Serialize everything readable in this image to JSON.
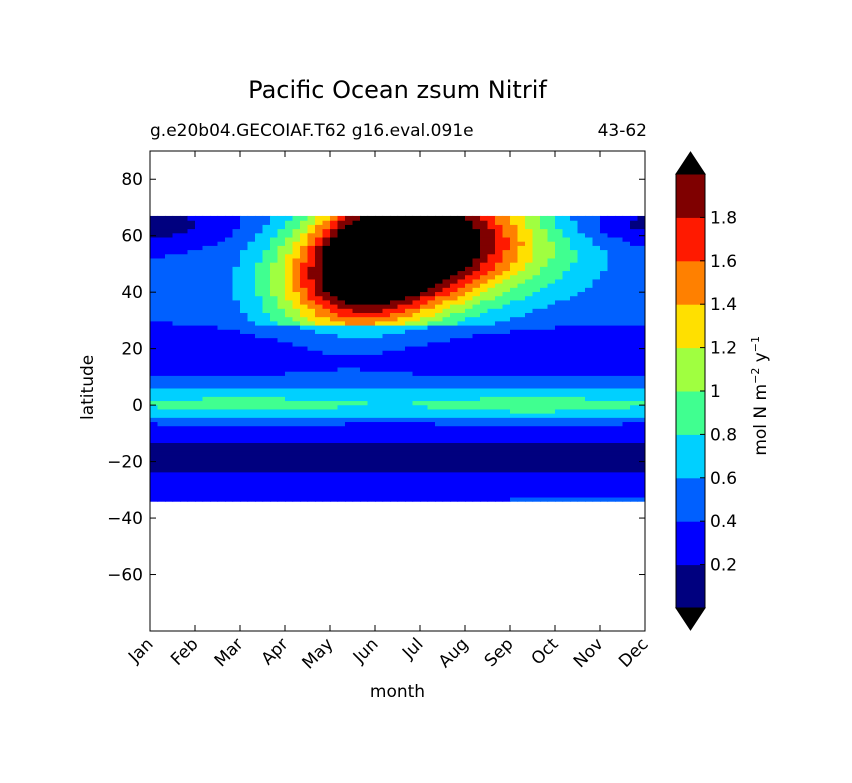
{
  "chart_data": {
    "type": "heatmap",
    "plot_type": "filled contour",
    "title": "Pacific Ocean zsum Nitrif",
    "subtitle_left": "g.e20b04.GECOIAF.T62 g16.eval.091e",
    "subtitle_right": "43-62",
    "xlabel": "month",
    "ylabel": "latitude",
    "x_categories": [
      "Jan",
      "Feb",
      "Mar",
      "Apr",
      "May",
      "Jun",
      "Jul",
      "Aug",
      "Sep",
      "Oct",
      "Nov",
      "Dec"
    ],
    "ylim": [
      -80,
      90
    ],
    "yticks": [
      80,
      60,
      40,
      20,
      0,
      -20,
      -40,
      -60
    ],
    "ytick_labels": [
      "80",
      "60",
      "40",
      "20",
      "0",
      "−20",
      "−40",
      "−60"
    ],
    "data_lat_range": [
      -34,
      67
    ],
    "colorbar": {
      "label_main": "mol N m",
      "label_exp1": "−2",
      "label_mid": " y",
      "label_exp2": "−1",
      "levels": [
        0,
        0.2,
        0.4,
        0.6,
        0.8,
        1.0,
        1.2,
        1.4,
        1.6,
        1.8,
        2.0
      ],
      "tick_values": [
        0.2,
        0.4,
        0.6,
        0.8,
        1.0,
        1.2,
        1.4,
        1.6,
        1.8
      ],
      "tick_labels": [
        "0.2",
        "0.4",
        "0.6",
        "0.8",
        "1",
        "1.2",
        "1.4",
        "1.6",
        "1.8"
      ],
      "colors": [
        "#00007f",
        "#0000ff",
        "#0060ff",
        "#00d0ff",
        "#40ff90",
        "#a0ff40",
        "#ffe000",
        "#ff8000",
        "#ff1a00",
        "#7f0000"
      ],
      "over_color": "#000000",
      "under_color": "#000000",
      "extend": "both"
    },
    "grid": false
  }
}
